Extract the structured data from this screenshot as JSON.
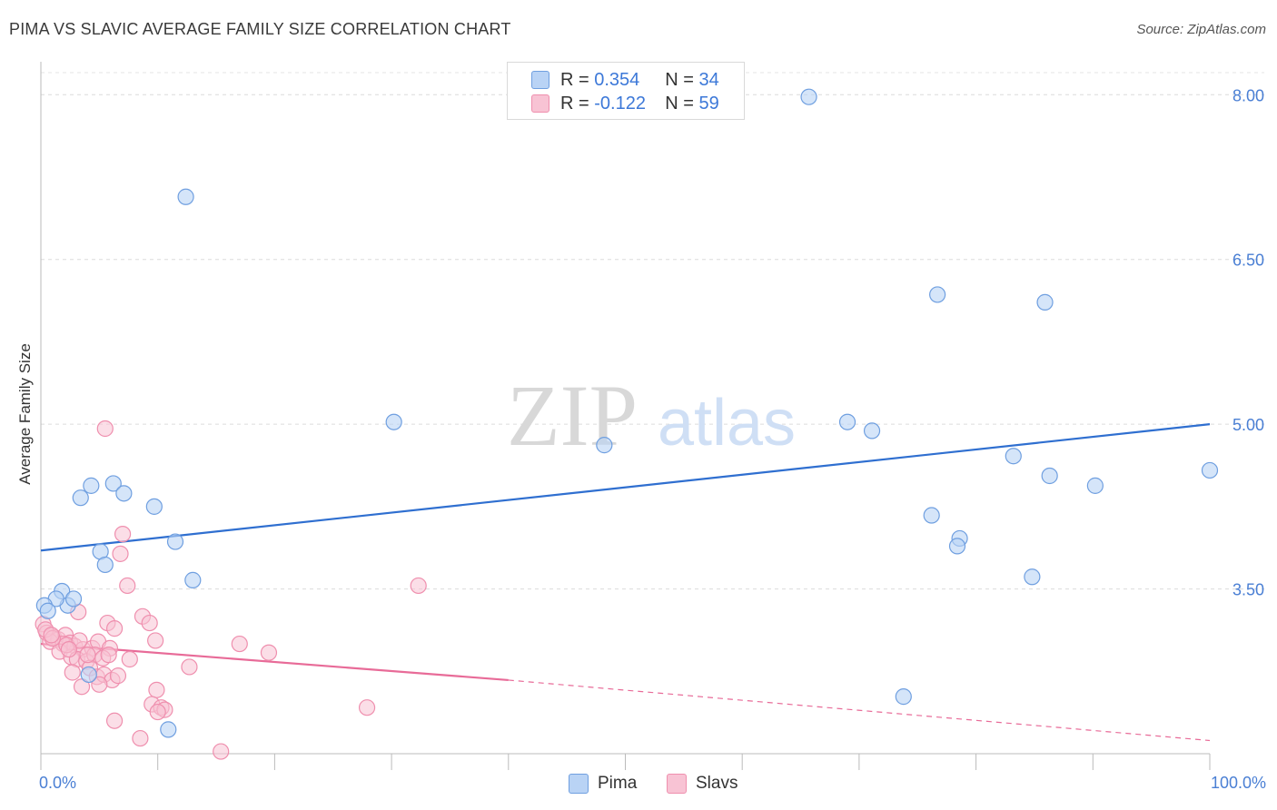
{
  "title": "PIMA VS SLAVIC AVERAGE FAMILY SIZE CORRELATION CHART",
  "source": "Source: ZipAtlas.com",
  "watermark": {
    "zip": "ZIP",
    "atlas": "atlas"
  },
  "legend": {
    "rows": [
      {
        "r_label": "R =",
        "r_value": "0.354",
        "n_label": "N =",
        "n_value": "34",
        "color": "#a8c8f0"
      },
      {
        "r_label": "R =",
        "r_value": "-0.122",
        "n_label": "N =",
        "n_value": "59",
        "color": "#f5b3c8"
      }
    ]
  },
  "bottom_legend": {
    "pima": "Pima",
    "slavs": "Slavs"
  },
  "chart_data": {
    "type": "scatter",
    "title": "PIMA VS SLAVIC AVERAGE FAMILY SIZE CORRELATION CHART",
    "xlabel": "",
    "ylabel": "Average Family Size",
    "xlim": [
      0,
      100
    ],
    "ylim": [
      2.0,
      8.3
    ],
    "x_tick_labels": [
      "0.0%",
      "100.0%"
    ],
    "y_ticks": [
      3.5,
      5.0,
      6.5,
      8.0
    ],
    "y_tick_labels": [
      "3.50",
      "5.00",
      "6.50",
      "8.00"
    ],
    "grid": true,
    "series": [
      {
        "name": "Pima",
        "color": "#6f9fe0",
        "fill": "#b9d3f5",
        "trend": {
          "x": [
            0,
            100
          ],
          "y": [
            3.85,
            5.0
          ],
          "color": "#2f6fd0"
        },
        "points": [
          [
            65.7,
            7.98
          ],
          [
            12.4,
            7.07
          ],
          [
            30.2,
            5.02
          ],
          [
            48.2,
            4.81
          ],
          [
            69.0,
            5.02
          ],
          [
            71.1,
            4.94
          ],
          [
            76.7,
            6.18
          ],
          [
            85.9,
            6.11
          ],
          [
            83.2,
            4.71
          ],
          [
            86.3,
            4.53
          ],
          [
            90.2,
            4.44
          ],
          [
            100.0,
            4.58
          ],
          [
            76.2,
            4.17
          ],
          [
            78.6,
            3.96
          ],
          [
            78.4,
            3.89
          ],
          [
            84.8,
            3.61
          ],
          [
            73.8,
            2.52
          ],
          [
            3.4,
            4.33
          ],
          [
            4.3,
            4.44
          ],
          [
            6.2,
            4.46
          ],
          [
            7.1,
            4.37
          ],
          [
            9.7,
            4.25
          ],
          [
            11.5,
            3.93
          ],
          [
            5.1,
            3.84
          ],
          [
            5.5,
            3.72
          ],
          [
            13.0,
            3.58
          ],
          [
            1.8,
            3.48
          ],
          [
            2.3,
            3.35
          ],
          [
            2.8,
            3.41
          ],
          [
            1.3,
            3.41
          ],
          [
            0.3,
            3.35
          ],
          [
            0.6,
            3.3
          ],
          [
            4.1,
            2.72
          ],
          [
            10.9,
            2.22
          ]
        ]
      },
      {
        "name": "Slavs",
        "color": "#ef8fae",
        "fill": "#f8c3d4",
        "trend": {
          "x": [
            0,
            40
          ],
          "y": [
            3.0,
            2.67
          ],
          "color": "#e86b98"
        },
        "trend_dashed": {
          "x": [
            40,
            100
          ],
          "y": [
            2.67,
            2.12
          ]
        },
        "points": [
          [
            5.5,
            4.96
          ],
          [
            7.0,
            4.0
          ],
          [
            6.8,
            3.82
          ],
          [
            7.4,
            3.53
          ],
          [
            32.3,
            3.53
          ],
          [
            3.2,
            3.29
          ],
          [
            5.7,
            3.19
          ],
          [
            6.3,
            3.14
          ],
          [
            8.7,
            3.25
          ],
          [
            9.3,
            3.19
          ],
          [
            0.2,
            3.18
          ],
          [
            0.5,
            3.1
          ],
          [
            1.1,
            3.06
          ],
          [
            1.5,
            3.04
          ],
          [
            2.1,
            3.08
          ],
          [
            2.5,
            3.01
          ],
          [
            0.8,
            3.02
          ],
          [
            1.9,
            3.0
          ],
          [
            2.9,
            2.98
          ],
          [
            3.6,
            2.95
          ],
          [
            4.4,
            2.96
          ],
          [
            4.9,
            3.02
          ],
          [
            5.9,
            2.96
          ],
          [
            9.8,
            3.03
          ],
          [
            17.0,
            3.0
          ],
          [
            19.5,
            2.92
          ],
          [
            1.6,
            2.93
          ],
          [
            2.6,
            2.88
          ],
          [
            3.1,
            2.86
          ],
          [
            3.9,
            2.84
          ],
          [
            4.6,
            2.9
          ],
          [
            5.3,
            2.87
          ],
          [
            5.8,
            2.9
          ],
          [
            7.6,
            2.86
          ],
          [
            12.7,
            2.79
          ],
          [
            2.7,
            2.74
          ],
          [
            4.2,
            2.78
          ],
          [
            4.8,
            2.7
          ],
          [
            5.4,
            2.72
          ],
          [
            6.1,
            2.67
          ],
          [
            6.6,
            2.71
          ],
          [
            3.5,
            2.61
          ],
          [
            5.0,
            2.63
          ],
          [
            9.9,
            2.58
          ],
          [
            9.5,
            2.45
          ],
          [
            10.3,
            2.42
          ],
          [
            10.6,
            2.4
          ],
          [
            10.0,
            2.38
          ],
          [
            27.9,
            2.42
          ],
          [
            6.3,
            2.3
          ],
          [
            8.5,
            2.14
          ],
          [
            15.4,
            2.02
          ],
          [
            0.4,
            3.13
          ],
          [
            1.0,
            3.05
          ],
          [
            2.2,
            2.99
          ],
          [
            3.3,
            3.03
          ],
          [
            4.0,
            2.9
          ],
          [
            0.9,
            3.08
          ],
          [
            2.4,
            2.95
          ]
        ]
      }
    ]
  }
}
